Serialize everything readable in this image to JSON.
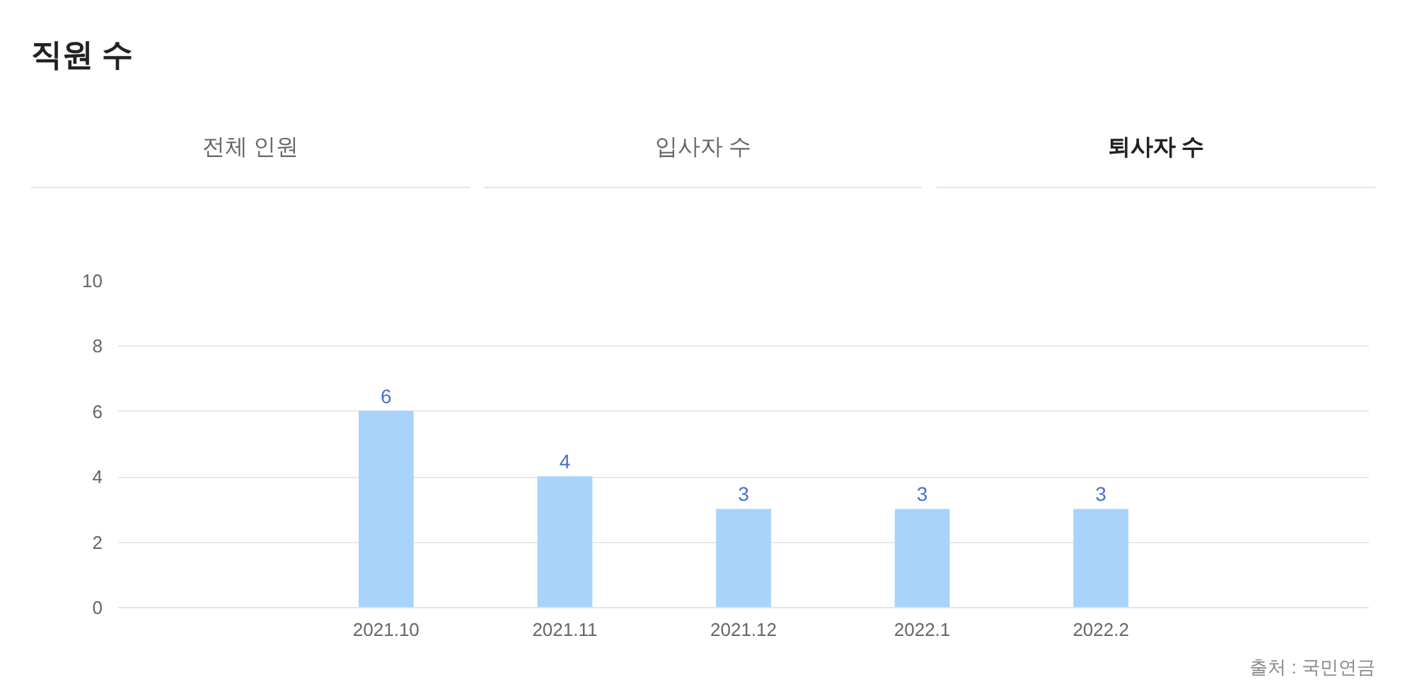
{
  "chart_data": {
    "type": "bar",
    "title": "직원 수",
    "categories": [
      null,
      "2021.10",
      "2021.11",
      "2021.12",
      "2022.1",
      "2022.2",
      null
    ],
    "values": [
      null,
      6,
      4,
      3,
      3,
      3,
      null
    ],
    "color": "#a8d4fb",
    "ylim": [
      0,
      10
    ],
    "yticks": [
      0,
      2,
      4,
      6,
      8,
      10
    ],
    "grid": "y",
    "data_labels": true,
    "annotations": [
      "전체 인원",
      "입사자 수",
      "퇴사자 수",
      "출처 : 국민연금"
    ]
  }
}
